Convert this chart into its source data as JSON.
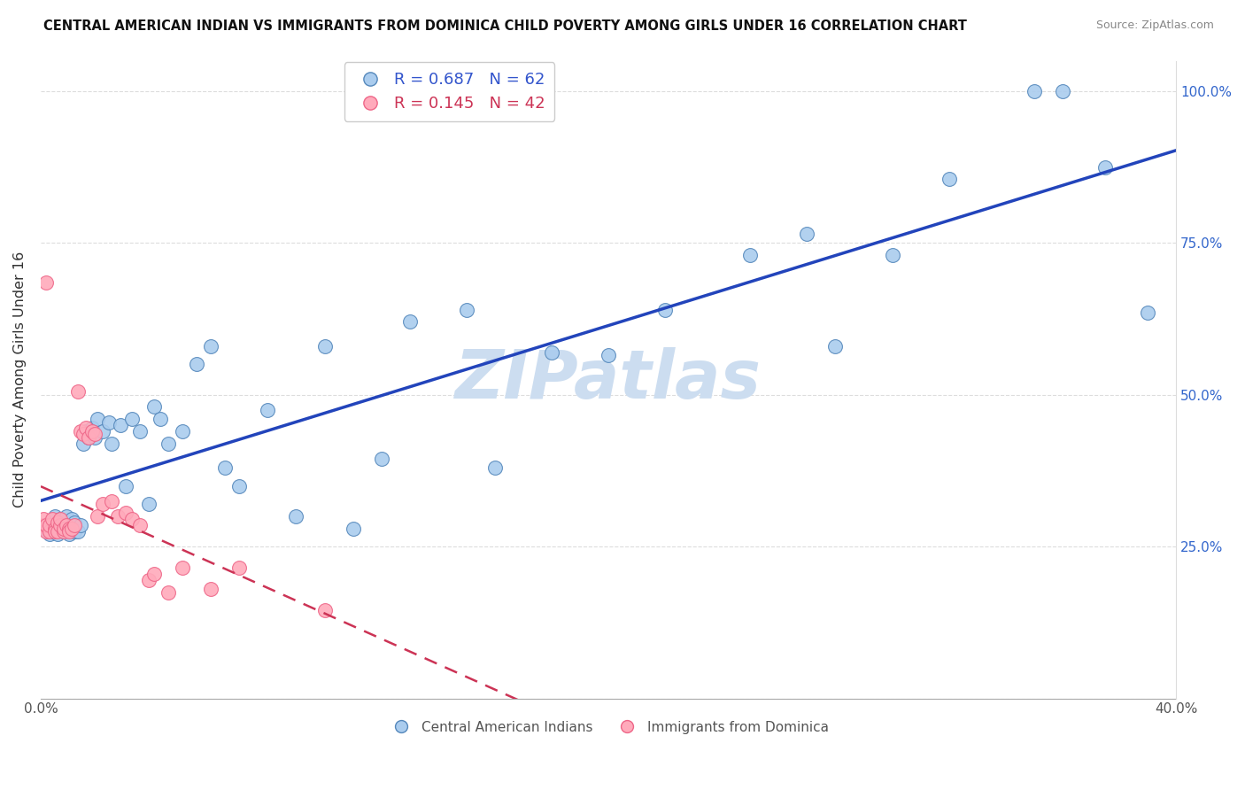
{
  "title": "CENTRAL AMERICAN INDIAN VS IMMIGRANTS FROM DOMINICA CHILD POVERTY AMONG GIRLS UNDER 16 CORRELATION CHART",
  "source": "Source: ZipAtlas.com",
  "ylabel": "Child Poverty Among Girls Under 16",
  "x_tick_positions": [
    0.0,
    0.1,
    0.2,
    0.3,
    0.4
  ],
  "x_tick_labels": [
    "0.0%",
    "",
    "",
    "",
    "40.0%"
  ],
  "y_tick_positions": [
    0.0,
    0.25,
    0.5,
    0.75,
    1.0
  ],
  "y_tick_labels": [
    "",
    "25.0%",
    "50.0%",
    "75.0%",
    "100.0%"
  ],
  "blue_face": "#aaccee",
  "blue_edge": "#5588bb",
  "pink_face": "#ffaabb",
  "pink_edge": "#ee6688",
  "line_blue_color": "#2244bb",
  "line_pink_color": "#cc3355",
  "watermark": "ZIPatlas",
  "watermark_color": "#ccddf0",
  "xlim": [
    0.0,
    0.4
  ],
  "ylim": [
    0.0,
    1.05
  ],
  "blue_x": [
    0.001,
    0.002,
    0.003,
    0.003,
    0.004,
    0.005,
    0.005,
    0.006,
    0.007,
    0.007,
    0.008,
    0.009,
    0.009,
    0.01,
    0.01,
    0.011,
    0.012,
    0.012,
    0.013,
    0.014,
    0.015,
    0.016,
    0.017,
    0.018,
    0.019,
    0.02,
    0.022,
    0.024,
    0.025,
    0.028,
    0.03,
    0.032,
    0.035,
    0.038,
    0.04,
    0.042,
    0.045,
    0.05,
    0.055,
    0.06,
    0.065,
    0.07,
    0.08,
    0.09,
    0.1,
    0.11,
    0.12,
    0.13,
    0.15,
    0.16,
    0.18,
    0.2,
    0.22,
    0.25,
    0.27,
    0.28,
    0.3,
    0.32,
    0.35,
    0.36,
    0.375,
    0.39
  ],
  "blue_y": [
    0.28,
    0.285,
    0.27,
    0.29,
    0.275,
    0.28,
    0.3,
    0.27,
    0.285,
    0.295,
    0.275,
    0.28,
    0.3,
    0.285,
    0.27,
    0.295,
    0.275,
    0.29,
    0.275,
    0.285,
    0.42,
    0.44,
    0.43,
    0.445,
    0.43,
    0.46,
    0.44,
    0.455,
    0.42,
    0.45,
    0.35,
    0.46,
    0.44,
    0.32,
    0.48,
    0.46,
    0.42,
    0.44,
    0.55,
    0.58,
    0.38,
    0.35,
    0.475,
    0.3,
    0.58,
    0.28,
    0.395,
    0.62,
    0.64,
    0.38,
    0.57,
    0.565,
    0.64,
    0.73,
    0.765,
    0.58,
    0.73,
    0.855,
    1.0,
    1.0,
    0.875,
    0.635
  ],
  "pink_x": [
    0.001,
    0.001,
    0.002,
    0.002,
    0.003,
    0.003,
    0.004,
    0.005,
    0.005,
    0.006,
    0.006,
    0.007,
    0.007,
    0.008,
    0.008,
    0.009,
    0.01,
    0.01,
    0.011,
    0.012,
    0.013,
    0.014,
    0.015,
    0.016,
    0.017,
    0.018,
    0.019,
    0.02,
    0.022,
    0.025,
    0.027,
    0.03,
    0.032,
    0.035,
    0.038,
    0.04,
    0.045,
    0.05,
    0.06,
    0.07,
    0.1,
    0.002
  ],
  "pink_y": [
    0.285,
    0.295,
    0.275,
    0.285,
    0.275,
    0.285,
    0.295,
    0.28,
    0.275,
    0.29,
    0.275,
    0.285,
    0.295,
    0.275,
    0.28,
    0.285,
    0.28,
    0.275,
    0.28,
    0.285,
    0.505,
    0.44,
    0.435,
    0.445,
    0.43,
    0.44,
    0.435,
    0.3,
    0.32,
    0.325,
    0.3,
    0.305,
    0.295,
    0.285,
    0.195,
    0.205,
    0.175,
    0.215,
    0.18,
    0.215,
    0.145,
    0.685
  ]
}
